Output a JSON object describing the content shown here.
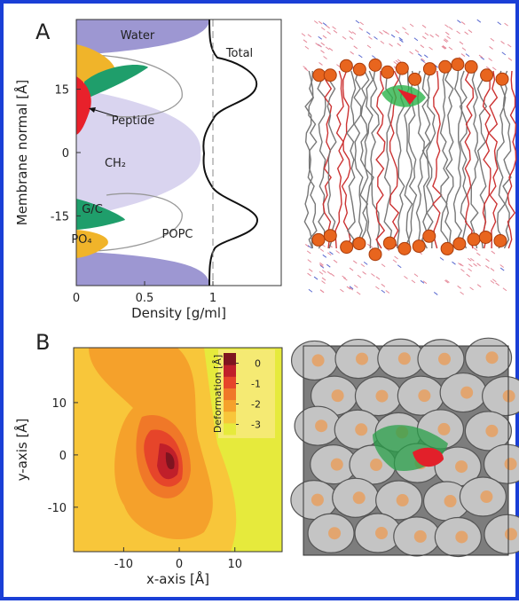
{
  "panel_a": {
    "label": "A",
    "ylabel": "Membrane normal [Å]",
    "xlabel": "Density [g/ml]",
    "xlim": [
      0,
      1.5
    ],
    "xticks": [
      0,
      0.5,
      1
    ],
    "ylim": [
      -31.5,
      31.5
    ],
    "yticks": [
      -15,
      0,
      15
    ],
    "region_labels": [
      "Water",
      "Total",
      "Peptide",
      "CH₂",
      "G/C",
      "PO₄",
      "POPC"
    ]
  },
  "panel_b": {
    "label": "B",
    "xlabel": "x-axis [Å]",
    "ylabel": "y-axis [Å]",
    "xlim": [
      -19,
      18.5
    ],
    "xticks": [
      -10,
      0,
      10
    ],
    "ylim": [
      -18.5,
      20.5
    ],
    "yticks": [
      -10,
      0,
      10
    ],
    "colorbar": {
      "title": "Deformation [Å]",
      "clim": [
        -3.5,
        0.5
      ],
      "ticks": [
        0,
        -1,
        -2,
        -3
      ],
      "colors": [
        "#e6ea3c",
        "#f8c63a",
        "#f5a12b",
        "#f07828",
        "#e6452a",
        "#c01f2a",
        "#7e1420"
      ]
    }
  }
}
